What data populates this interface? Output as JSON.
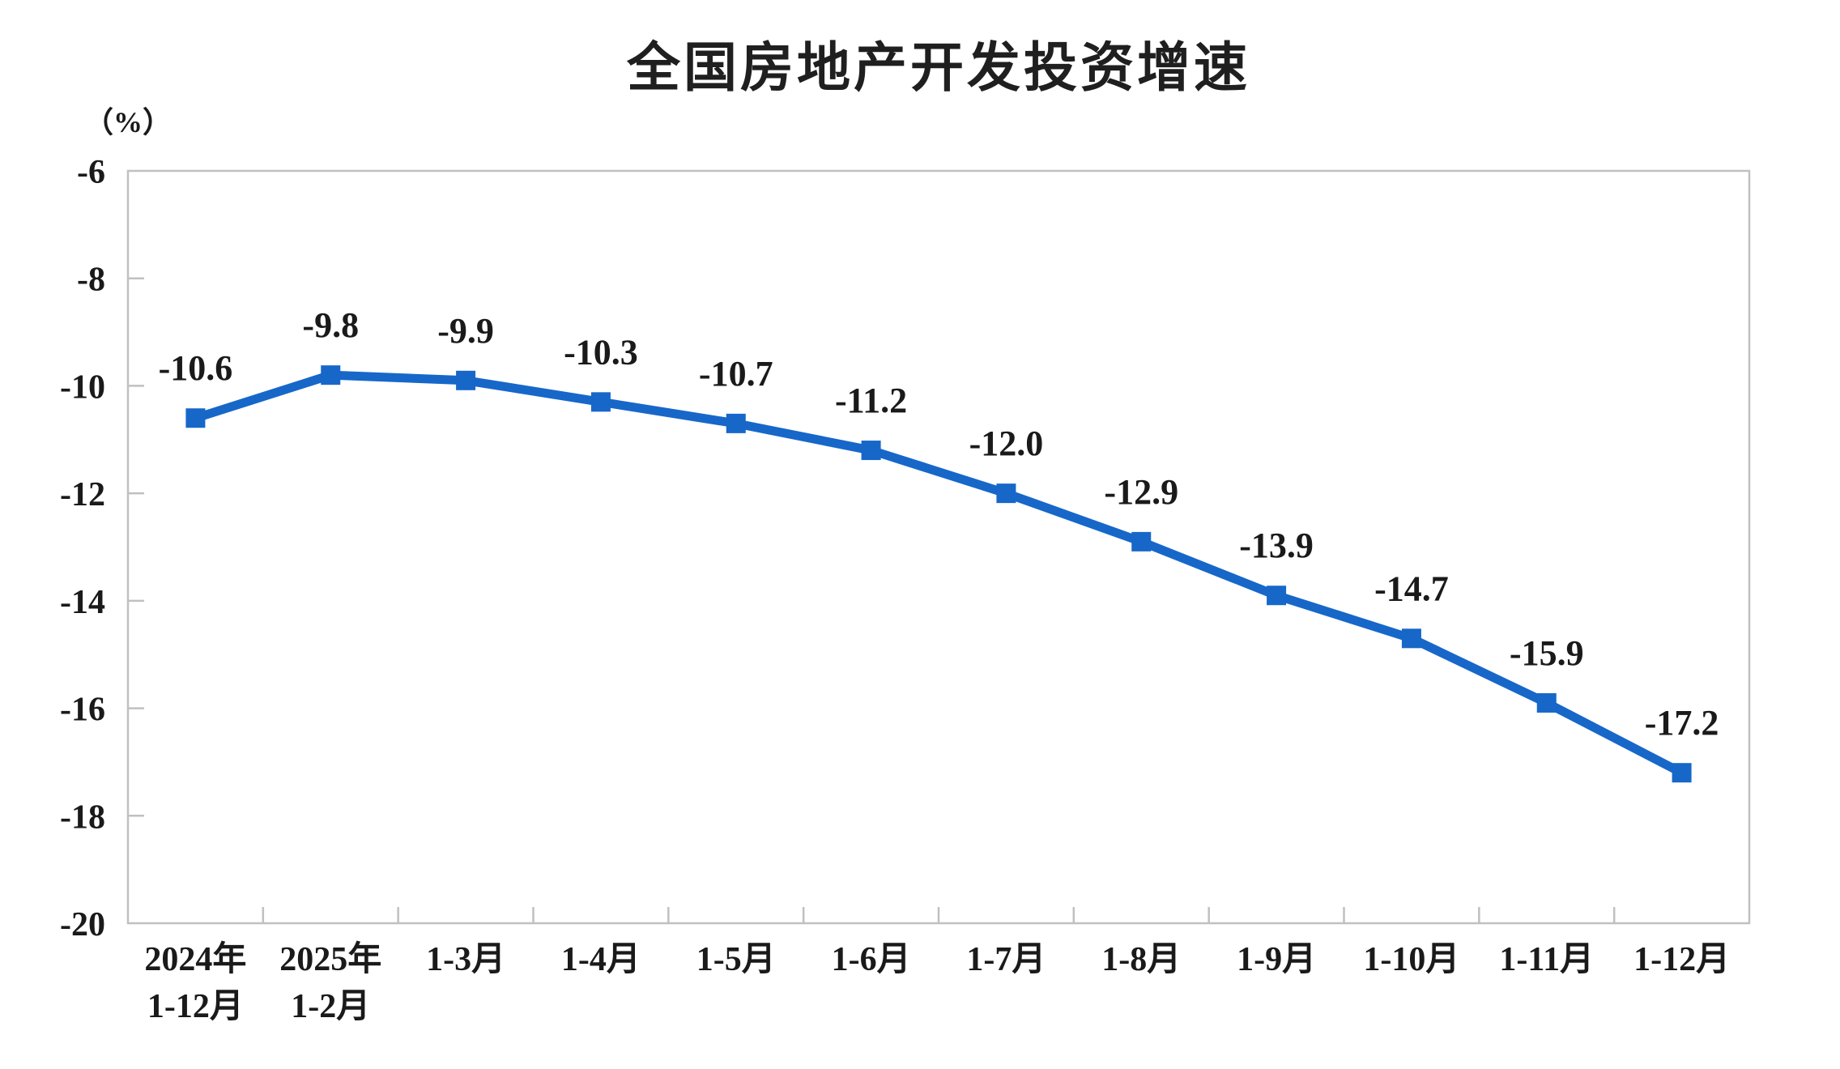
{
  "page": {
    "title": "全国房地产开发投资增速",
    "unit_label": "（%）"
  },
  "chart_data": {
    "type": "line",
    "title": "全国房地产开发投资增速",
    "ylabel": "（%）",
    "categories": [
      [
        "2024年",
        "1-12月"
      ],
      [
        "2025年",
        "1-2月"
      ],
      [
        "1-3月"
      ],
      [
        "1-4月"
      ],
      [
        "1-5月"
      ],
      [
        "1-6月"
      ],
      [
        "1-7月"
      ],
      [
        "1-8月"
      ],
      [
        "1-9月"
      ],
      [
        "1-10月"
      ],
      [
        "1-11月"
      ],
      [
        "1-12月"
      ]
    ],
    "series": [
      {
        "name": "全国房地产开发投资增速",
        "values": [
          -10.6,
          -9.8,
          -9.9,
          -10.3,
          -10.7,
          -11.2,
          -12.0,
          -12.9,
          -13.9,
          -14.7,
          -15.9,
          -17.2
        ]
      }
    ],
    "point_labels": [
      "-10.6",
      "-9.8",
      "-9.9",
      "-10.3",
      "-10.7",
      "-11.2",
      "-12.0",
      "-12.9",
      "-13.9",
      "-14.7",
      "-15.9",
      "-17.2"
    ],
    "ylim": [
      -20,
      -6
    ],
    "yticks": [
      -6,
      -8,
      -10,
      -12,
      -14,
      -16,
      -18,
      -20
    ],
    "grid": false,
    "legend": "none",
    "marker": "square",
    "line_color": "#1767C9",
    "marker_color": "#1767C9",
    "axis_color": "#C0C0C0",
    "text_color": "#1a1a1a"
  }
}
